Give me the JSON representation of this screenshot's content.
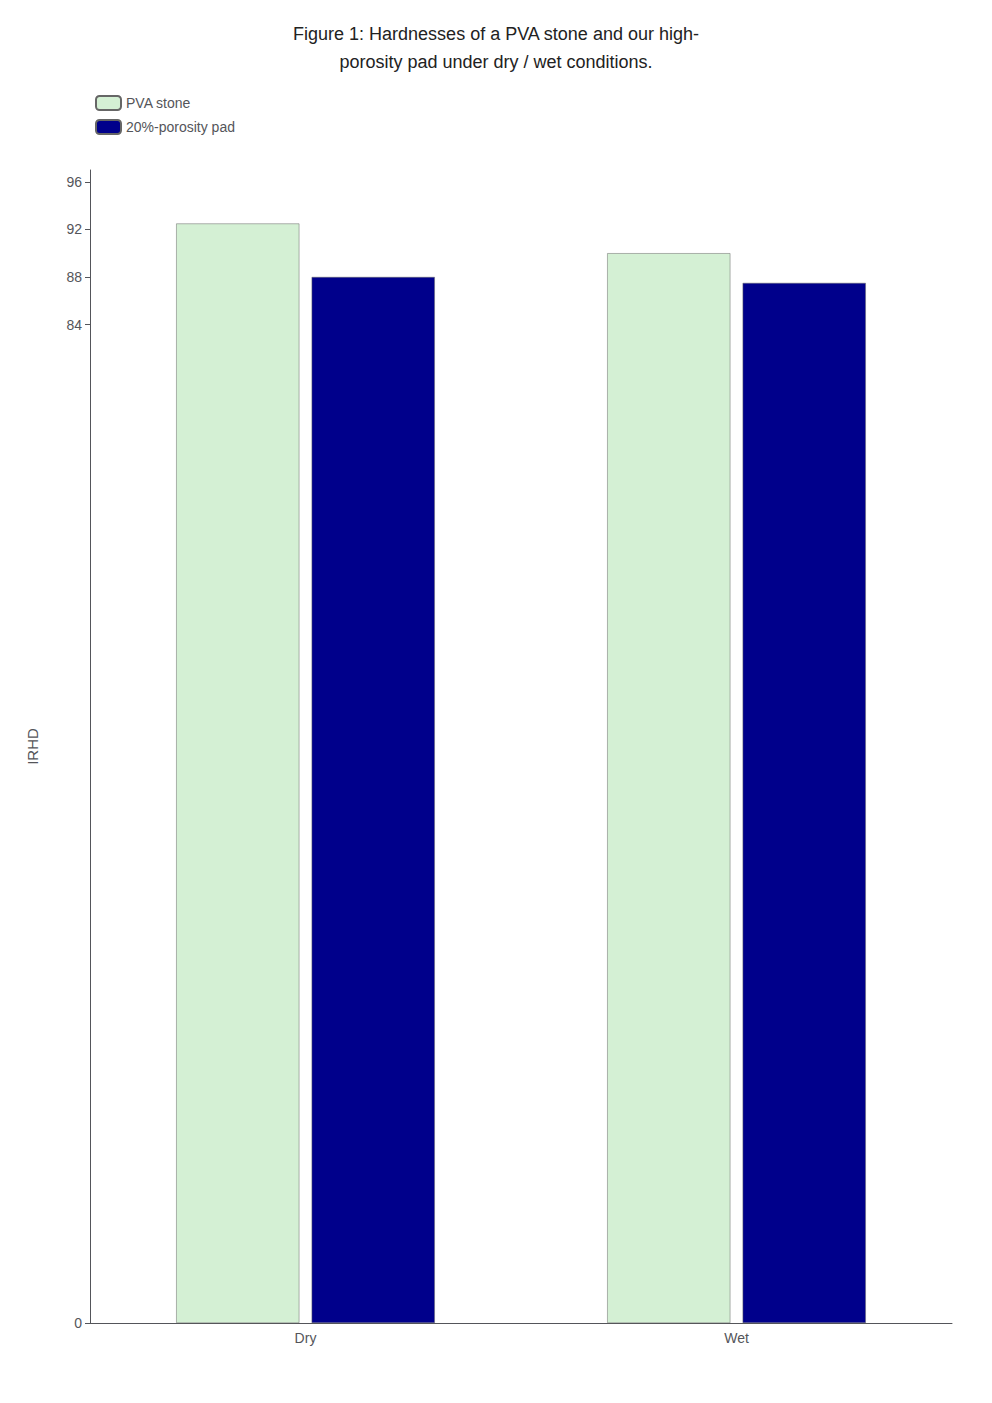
{
  "chart_data": {
    "type": "bar",
    "title": "Figure 1: Hardnesses of a PVA stone and our high-",
    "subtitle": "porosity pad under dry / wet conditions.",
    "categories": [
      "Dry",
      "Wet"
    ],
    "series": [
      {
        "name": "PVA stone",
        "color": "#d4f0d4",
        "values": [
          92.5,
          90.0
        ]
      },
      {
        "name": "20%-porosity pad",
        "color": "#00008B",
        "values": [
          88.0,
          87.5
        ]
      }
    ],
    "ylabel": "IRHD",
    "ylim": [
      0,
      97
    ],
    "yticks": [
      0,
      84,
      88,
      92,
      96
    ],
    "grid": false,
    "legend": "upper left"
  }
}
